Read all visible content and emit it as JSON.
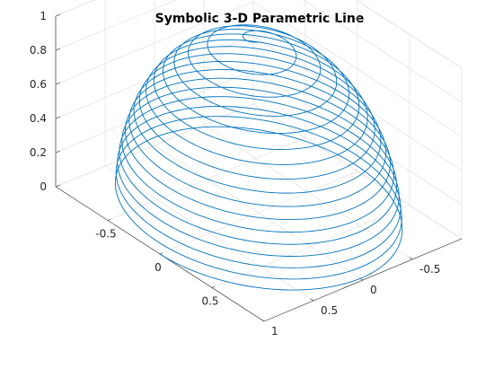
{
  "chart_data": {
    "type": "line",
    "title": "Symbolic 3-D Parametric Line",
    "xlabel": "",
    "ylabel": "",
    "zlabel": "",
    "grid": true,
    "x_ticks": [
      "-0.5",
      "0",
      "0.5"
    ],
    "y_ticks": [
      "-0.5",
      "0",
      "0.5",
      "1"
    ],
    "z_ticks": [
      "0",
      "0.2",
      "0.4",
      "0.6",
      "0.8",
      "1"
    ],
    "xlim": [
      -1,
      1
    ],
    "ylim": [
      -1,
      1
    ],
    "zlim": [
      0,
      1
    ],
    "series": [
      {
        "color": "#0072BD",
        "parametric": {
          "t_range": [
            0,
            100
          ],
          "x": "sin(t)*sqrt(1-(t/100)^2)",
          "y": "cos(t)*sqrt(1-(t/100)^2)",
          "z": "t/100"
        }
      }
    ]
  }
}
